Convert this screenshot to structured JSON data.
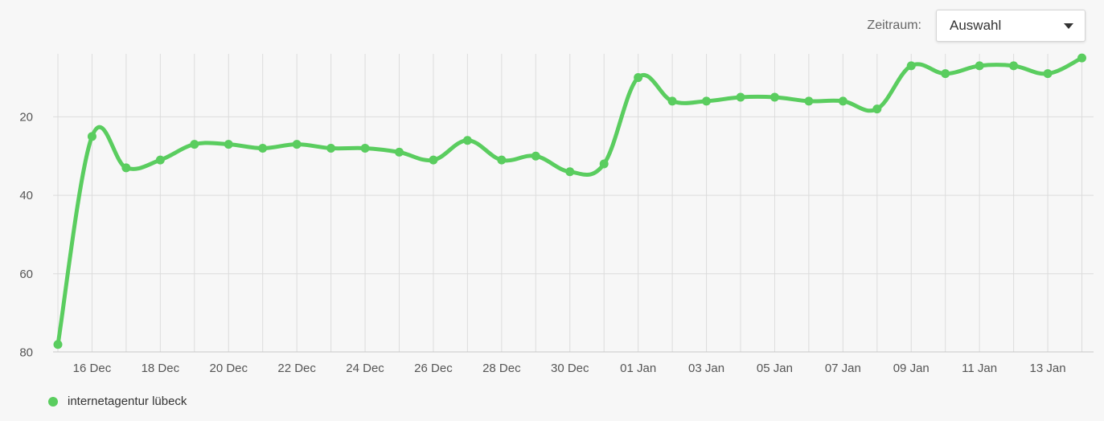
{
  "toolbar": {
    "period_label": "Zeitraum:",
    "period_value": "Auswahl"
  },
  "chart_data": {
    "type": "line",
    "y_inverted": true,
    "ylim": [
      80,
      0
    ],
    "yticks": [
      20,
      40,
      60,
      80
    ],
    "x_start_label": "15 Dec",
    "xtick_labels": [
      "16 Dec",
      "18 Dec",
      "20 Dec",
      "22 Dec",
      "24 Dec",
      "26 Dec",
      "28 Dec",
      "30 Dec",
      "01 Jan",
      "03 Jan",
      "05 Jan",
      "07 Jan",
      "09 Jan",
      "11 Jan",
      "13 Jan"
    ],
    "x": [
      "15 Dec",
      "16 Dec",
      "17 Dec",
      "18 Dec",
      "19 Dec",
      "20 Dec",
      "21 Dec",
      "22 Dec",
      "23 Dec",
      "24 Dec",
      "25 Dec",
      "26 Dec",
      "27 Dec",
      "28 Dec",
      "29 Dec",
      "30 Dec",
      "31 Dec",
      "01 Jan",
      "02 Jan",
      "03 Jan",
      "04 Jan",
      "05 Jan",
      "06 Jan",
      "07 Jan",
      "08 Jan",
      "09 Jan",
      "10 Jan",
      "11 Jan",
      "12 Jan",
      "13 Jan",
      "14 Jan"
    ],
    "series": [
      {
        "name": "internetagentur lübeck",
        "color": "#5acd5f",
        "values": [
          78,
          25,
          33,
          31,
          27,
          27,
          28,
          27,
          28,
          28,
          29,
          31,
          26,
          31,
          30,
          34,
          32,
          10,
          16,
          16,
          15,
          15,
          16,
          16,
          18,
          7,
          9,
          7,
          7,
          9,
          5
        ]
      }
    ],
    "grid": true,
    "legend_position": "bottom-left"
  }
}
